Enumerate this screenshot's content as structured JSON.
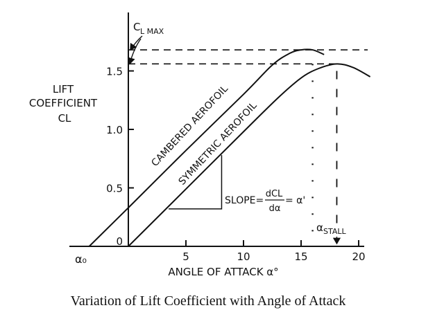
{
  "chart_data": {
    "type": "line",
    "xlabel": "ANGLE OF ATTACK α°",
    "ylabel": [
      "LIFT",
      "COEFFICIENT",
      "CL"
    ],
    "xlim": [
      -4,
      20
    ],
    "ylim": [
      0,
      1.9
    ],
    "x_ticks": [
      {
        "value": 5,
        "label": "5"
      },
      {
        "value": 10,
        "label": "10"
      },
      {
        "value": 15,
        "label": "15"
      },
      {
        "value": 20,
        "label": "20"
      }
    ],
    "y_ticks": [
      {
        "value": 0.5,
        "label": "0.5"
      },
      {
        "value": 1.0,
        "label": "1.0"
      },
      {
        "value": 1.5,
        "label": "1.5"
      }
    ],
    "origin_label": "0",
    "series": [
      {
        "name": "CAMBERED AEROFOIL",
        "points": [
          [
            -3.4,
            0.0
          ],
          [
            0,
            0.33
          ],
          [
            5,
            0.82
          ],
          [
            10,
            1.3
          ],
          [
            12.5,
            1.55
          ],
          [
            14,
            1.65
          ],
          [
            15,
            1.68
          ],
          [
            16,
            1.68
          ],
          [
            17,
            1.64
          ]
        ]
      },
      {
        "name": "SYMMETRIC AEROFOIL",
        "points": [
          [
            0,
            0.0
          ],
          [
            5,
            0.49
          ],
          [
            10,
            0.98
          ],
          [
            13,
            1.27
          ],
          [
            15,
            1.44
          ],
          [
            16.5,
            1.52
          ],
          [
            18.1,
            1.56
          ],
          [
            19.5,
            1.53
          ],
          [
            21,
            1.45
          ]
        ]
      }
    ],
    "annotations": {
      "cl_max_label_main": "C",
      "cl_max_label_sub": "L MAX",
      "cl_max_value": 1.68,
      "alpha_zero_lift_label": "α₀",
      "alpha_zero_lift_value": -3.4,
      "slope_text": "SLOPE=",
      "slope_num": "dCL",
      "slope_den": "dα",
      "slope_rhs": "= α'",
      "alpha_stall_main": "α",
      "alpha_stall_sub": "STALL",
      "alpha_stall_values": [
        16,
        18.1
      ]
    }
  },
  "caption": "Variation of Lift Coefficient with Angle of Attack"
}
